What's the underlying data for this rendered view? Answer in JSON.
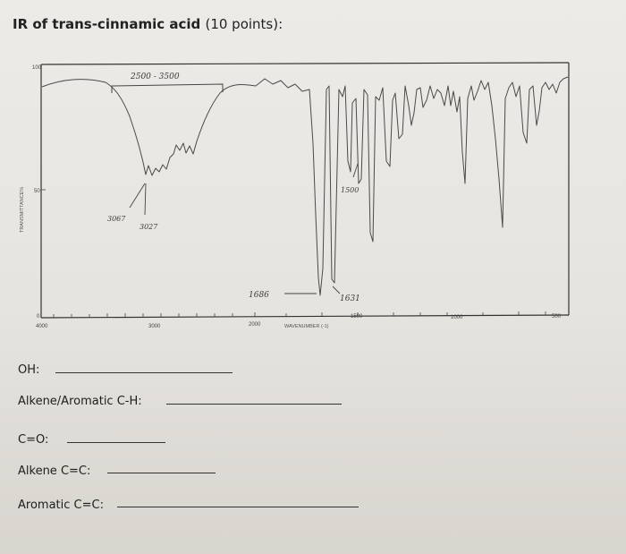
{
  "title": {
    "bold": "IR of trans-cinnamic acid",
    "points": "(10 points):"
  },
  "spectrum": {
    "y_axis_label": "TRANSMITTANCE%",
    "y_ticks": [
      "100",
      "50",
      "0"
    ],
    "x_ticks": [
      "4000",
      "3000",
      "2000",
      "1500",
      "1000",
      "500"
    ],
    "x_axis_label": "WAVENUMBER (-1)",
    "annotations": {
      "range": "2500 - 3500",
      "peak_3067": "3067",
      "peak_3027": "3027",
      "peak_1500": "1500",
      "peak_1686": "1686",
      "peak_1631": "1631"
    }
  },
  "questions": [
    {
      "label": "OH:"
    },
    {
      "label": "Alkene/Aromatic C-H:"
    },
    {
      "label": "C=O:"
    },
    {
      "label": "Alkene C=C:"
    },
    {
      "label": "Aromatic C=C:"
    }
  ]
}
